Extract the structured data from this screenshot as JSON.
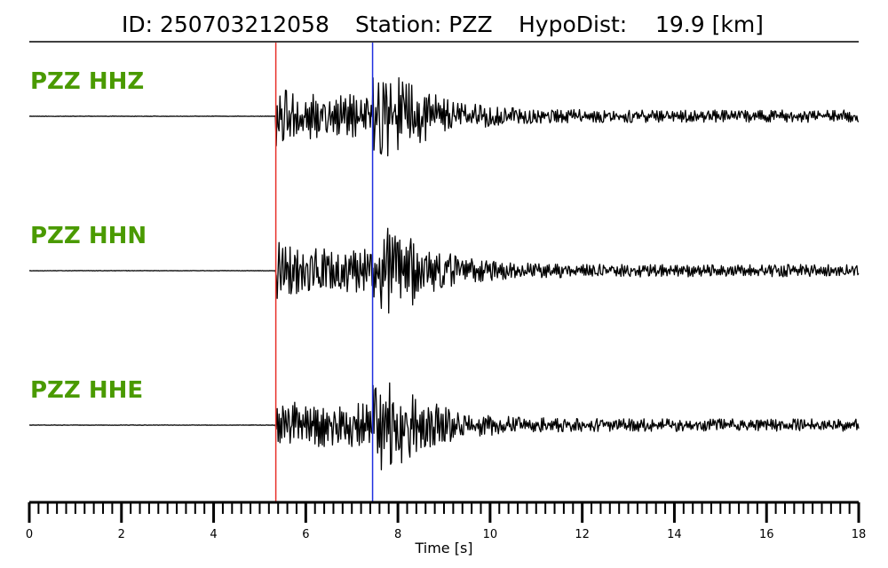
{
  "title": {
    "id": "ID: 250703212058",
    "station": "Station: PZZ",
    "hypodist": "HypoDist:    19.9 [km]"
  },
  "colors": {
    "channel_label": "#4a9a00",
    "p_pick": "#e8302a",
    "s_pick": "#2030e0",
    "trace": "#000000"
  },
  "chart_data": {
    "type": "line",
    "xlabel": "Time [s]",
    "xlim": [
      0,
      18
    ],
    "x_ticks": [
      0,
      2,
      4,
      6,
      8,
      10,
      12,
      14,
      16,
      18
    ],
    "x_tick_labels": [
      "0",
      "2",
      "4",
      "6",
      "8",
      "10",
      "12",
      "14",
      "16",
      "18"
    ],
    "minor_tick_step": 0.2,
    "grid": false,
    "picks": [
      {
        "phase": "P",
        "time": 5.35,
        "color": "#e8302a"
      },
      {
        "phase": "S",
        "time": 7.45,
        "color": "#2030e0"
      }
    ],
    "series": [
      {
        "name": "PZZ HHZ",
        "onset": 5.35,
        "s_arrival": 7.45,
        "relative_amplitude": 1.0,
        "seed": 11
      },
      {
        "name": "PZZ HHN",
        "onset": 5.35,
        "s_arrival": 7.45,
        "relative_amplitude": 1.0,
        "seed": 37
      },
      {
        "name": "PZZ HHE",
        "onset": 5.35,
        "s_arrival": 7.45,
        "relative_amplitude": 1.0,
        "seed": 73
      }
    ]
  }
}
